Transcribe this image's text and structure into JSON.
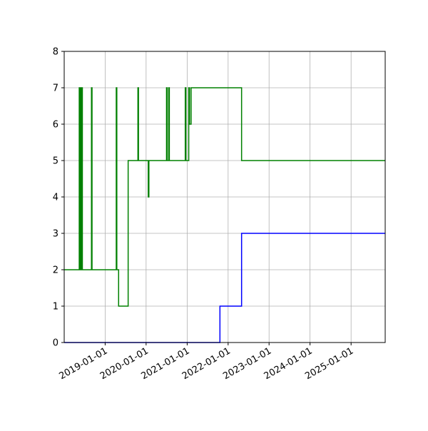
{
  "chart_data": {
    "type": "line",
    "title": "",
    "xlabel": "",
    "ylabel": "",
    "x_axis_type": "date",
    "xlim": [
      "2018-01-01",
      "2025-11-01"
    ],
    "ylim": [
      0,
      8
    ],
    "grid": true,
    "legend": "none",
    "x_ticks": [
      "2019-01-01",
      "2020-01-01",
      "2021-01-01",
      "2022-01-01",
      "2023-01-01",
      "2024-01-01",
      "2025-01-01"
    ],
    "y_ticks": [
      0,
      1,
      2,
      3,
      4,
      5,
      6,
      7,
      8
    ],
    "series": [
      {
        "color": "#008000",
        "step": "post",
        "points": [
          [
            "2018-01-01",
            2
          ],
          [
            "2018-05-15",
            7
          ],
          [
            "2018-05-20",
            2
          ],
          [
            "2018-05-25",
            7
          ],
          [
            "2018-06-01",
            2
          ],
          [
            "2018-06-05",
            7
          ],
          [
            "2018-06-12",
            2
          ],
          [
            "2018-09-01",
            7
          ],
          [
            "2018-09-06",
            2
          ],
          [
            "2019-04-10",
            7
          ],
          [
            "2019-04-15",
            2
          ],
          [
            "2019-05-01",
            1
          ],
          [
            "2019-07-25",
            5
          ],
          [
            "2019-10-20",
            7
          ],
          [
            "2019-10-25",
            5
          ],
          [
            "2020-01-20",
            4
          ],
          [
            "2020-01-26",
            5
          ],
          [
            "2020-07-01",
            7
          ],
          [
            "2020-07-06",
            5
          ],
          [
            "2020-07-20",
            7
          ],
          [
            "2020-07-26",
            5
          ],
          [
            "2020-12-15",
            7
          ],
          [
            "2020-12-21",
            5
          ],
          [
            "2021-01-15",
            7
          ],
          [
            "2021-01-22",
            6
          ],
          [
            "2021-02-05",
            7
          ],
          [
            "2022-05-01",
            5
          ],
          [
            "2025-11-01",
            5
          ]
        ]
      },
      {
        "color": "#0000ff",
        "step": "post",
        "points": [
          [
            "2018-01-01",
            0
          ],
          [
            "2021-10-20",
            1
          ],
          [
            "2022-05-01",
            3
          ],
          [
            "2025-11-01",
            3
          ]
        ]
      }
    ]
  }
}
